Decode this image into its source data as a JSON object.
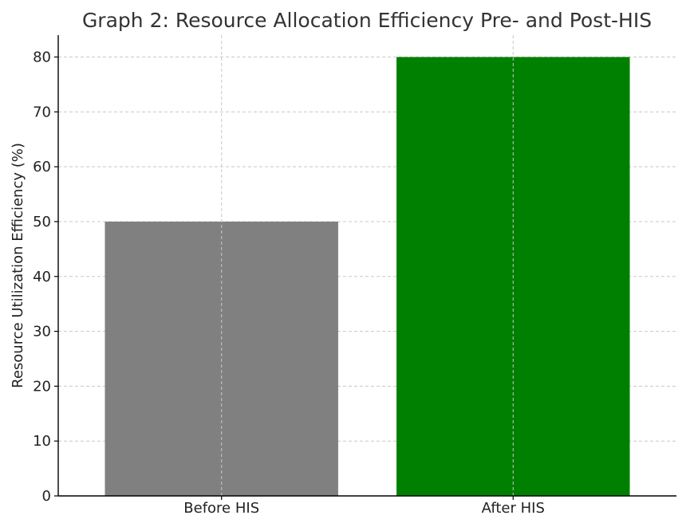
{
  "chart_data": {
    "type": "bar",
    "title": "Graph 2: Resource Allocation Efficiency Pre- and Post-HIS",
    "xlabel": "",
    "ylabel": "Resource Utilization Efficiency (%)",
    "categories": [
      "Before HIS",
      "After HIS"
    ],
    "values": [
      50,
      80
    ],
    "colors": [
      "#808080",
      "#008000"
    ],
    "ylim": [
      0,
      84
    ],
    "yticks": [
      0,
      10,
      20,
      30,
      40,
      50,
      60,
      70,
      80
    ],
    "grid": true
  }
}
